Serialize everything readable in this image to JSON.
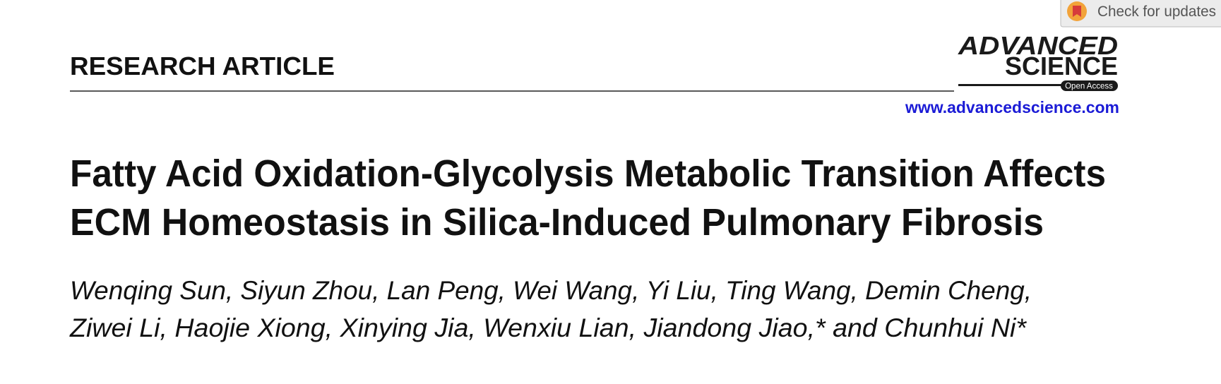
{
  "header": {
    "section": "RESEARCH ARTICLE",
    "journal_logo": {
      "line1": "ADVANCED",
      "line2": "SCIENCE",
      "badge": "Open Access"
    },
    "url": "www.advancedscience.com",
    "check_updates": "Check for updates"
  },
  "title": {
    "lines": [
      "Fatty Acid Oxidation-Glycolysis Metabolic Transition Affects",
      "ECM Homeostasis in Silica-Induced Pulmonary Fibrosis"
    ]
  },
  "authors": {
    "lines": [
      "Wenqing Sun, Siyun Zhou, Lan Peng, Wei Wang, Yi Liu, Ting Wang, Demin Cheng,",
      "Ziwei Li, Haojie Xiong, Xinying Jia, Wenxiu Lian, Jiandong Jiao,* and Chunhui Ni*"
    ]
  }
}
